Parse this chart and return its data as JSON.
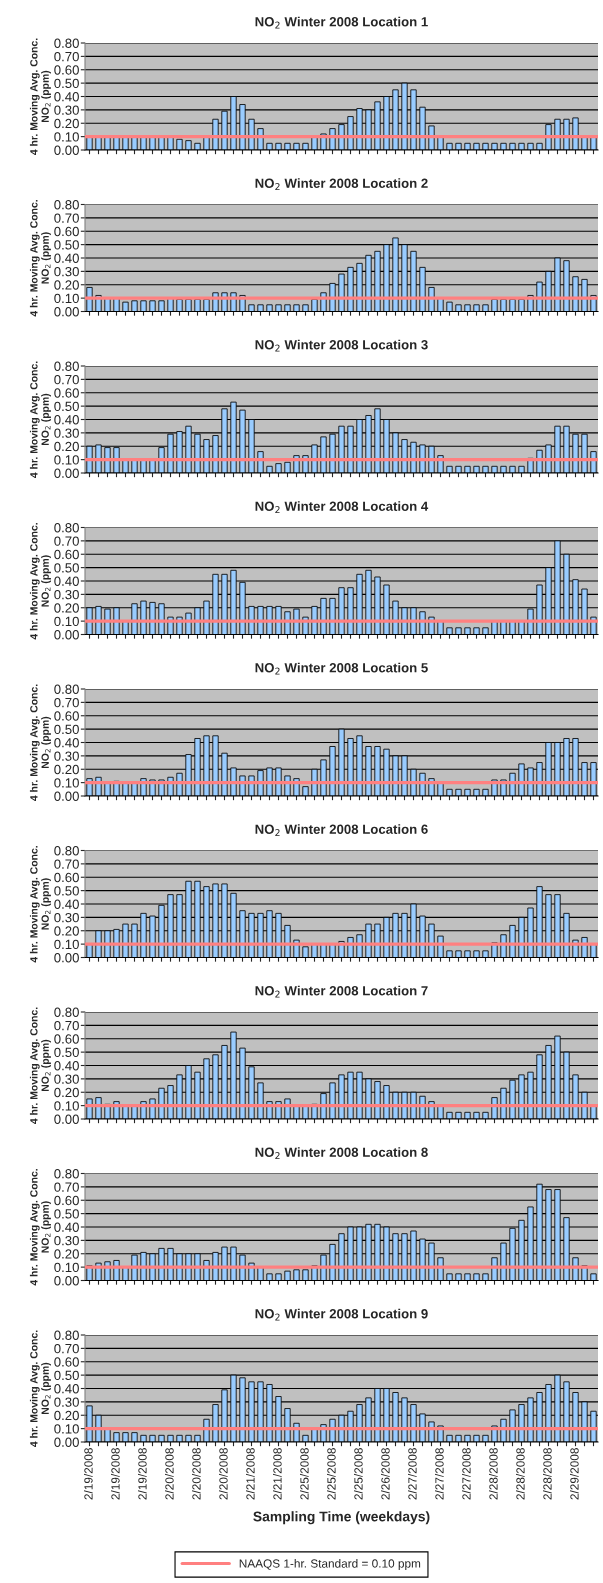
{
  "chart_data": [
    {
      "type": "bar",
      "title": "NO$_{2}$ Winter 2008 Location 1",
      "ylabel": "4 hr. Moving Avg. Conc.\nNO$_{2}$ (ppm)",
      "tick_labels": "y",
      "grid": "y",
      "color": "#99ccff",
      "ylim": [
        0,
        0.8
      ],
      "yticks": [
        {
          "value": 0,
          "label": "0.00"
        },
        {
          "value": 0.1,
          "label": "0.10"
        },
        {
          "value": 0.2,
          "label": "0.20"
        },
        {
          "value": 0.3,
          "label": "0.30"
        },
        {
          "value": 0.4,
          "label": "0.40"
        },
        {
          "value": 0.5,
          "label": "0.50"
        },
        {
          "value": 0.6,
          "label": "0.60"
        },
        {
          "value": 0.7,
          "label": "0.70"
        },
        {
          "value": 0.8,
          "label": "0.80"
        }
      ],
      "categories": [
        null,
        null,
        null,
        null,
        null,
        null,
        null,
        null,
        null,
        null,
        null,
        null,
        null,
        null,
        null,
        null,
        null,
        null,
        null,
        null,
        null,
        null,
        null,
        null,
        null,
        null,
        null,
        null,
        null,
        null,
        null,
        null,
        null,
        null,
        null,
        null,
        null,
        null,
        null,
        null,
        null,
        null,
        null,
        null,
        null,
        null,
        null,
        null,
        null,
        null,
        null,
        null,
        null,
        null,
        null,
        null,
        null
      ],
      "values": [
        0.1,
        0.1,
        0.1,
        0.1,
        0.1,
        0.1,
        0.1,
        0.1,
        0.1,
        0.1,
        0.08,
        0.07,
        0.05,
        0.1,
        0.23,
        0.29,
        0.4,
        0.34,
        0.23,
        0.16,
        0.05,
        0.05,
        0.05,
        0.05,
        0.05,
        0.1,
        0.12,
        0.16,
        0.19,
        0.25,
        0.31,
        0.3,
        0.36,
        0.4,
        0.45,
        0.5,
        0.45,
        0.32,
        0.18,
        0.1,
        0.05,
        0.05,
        0.05,
        0.05,
        0.05,
        0.05,
        0.05,
        0.05,
        0.05,
        0.05,
        0.05,
        0.19,
        0.23,
        0.23,
        0.24,
        0.1,
        0.1
      ],
      "ref_lines": [
        {
          "axis": "y",
          "value": 0.1,
          "color": "#ff8080"
        }
      ]
    },
    {
      "type": "bar",
      "title": "NO$_{2}$ Winter 2008 Location 2",
      "ylabel": "4 hr. Moving Avg. Conc.\nNO$_{2}$ (ppm)",
      "tick_labels": "y",
      "grid": "y",
      "color": "#99ccff",
      "ylim": [
        0,
        0.8
      ],
      "yticks": [
        {
          "value": 0,
          "label": "0.00"
        },
        {
          "value": 0.1,
          "label": "0.10"
        },
        {
          "value": 0.2,
          "label": "0.20"
        },
        {
          "value": 0.3,
          "label": "0.30"
        },
        {
          "value": 0.4,
          "label": "0.40"
        },
        {
          "value": 0.5,
          "label": "0.50"
        },
        {
          "value": 0.6,
          "label": "0.60"
        },
        {
          "value": 0.7,
          "label": "0.70"
        },
        {
          "value": 0.8,
          "label": "0.80"
        }
      ],
      "categories": [
        null,
        null,
        null,
        null,
        null,
        null,
        null,
        null,
        null,
        null,
        null,
        null,
        null,
        null,
        null,
        null,
        null,
        null,
        null,
        null,
        null,
        null,
        null,
        null,
        null,
        null,
        null,
        null,
        null,
        null,
        null,
        null,
        null,
        null,
        null,
        null,
        null,
        null,
        null,
        null,
        null,
        null,
        null,
        null,
        null,
        null,
        null,
        null,
        null,
        null,
        null,
        null,
        null,
        null,
        null,
        null,
        null
      ],
      "values": [
        0.18,
        0.12,
        0.1,
        0.1,
        0.07,
        0.08,
        0.08,
        0.08,
        0.08,
        0.1,
        0.09,
        0.09,
        0.09,
        0.09,
        0.14,
        0.14,
        0.14,
        0.12,
        0.05,
        0.05,
        0.05,
        0.05,
        0.05,
        0.05,
        0.05,
        0.09,
        0.14,
        0.21,
        0.28,
        0.33,
        0.36,
        0.42,
        0.45,
        0.5,
        0.55,
        0.5,
        0.45,
        0.33,
        0.18,
        0.1,
        0.07,
        0.05,
        0.05,
        0.05,
        0.05,
        0.09,
        0.09,
        0.09,
        0.09,
        0.12,
        0.22,
        0.3,
        0.4,
        0.38,
        0.26,
        0.24,
        0.12
      ],
      "ref_lines": [
        {
          "axis": "y",
          "value": 0.1,
          "color": "#ff8080"
        }
      ]
    },
    {
      "type": "bar",
      "title": "NO$_{2}$ Winter 2008 Location 3",
      "ylabel": "4 hr. Moving Avg. Conc.\nNO$_{2}$ (ppm)",
      "tick_labels": "y",
      "grid": "y",
      "color": "#99ccff",
      "ylim": [
        0,
        0.8
      ],
      "yticks": [
        {
          "value": 0,
          "label": "0.00"
        },
        {
          "value": 0.1,
          "label": "0.10"
        },
        {
          "value": 0.2,
          "label": "0.20"
        },
        {
          "value": 0.3,
          "label": "0.30"
        },
        {
          "value": 0.4,
          "label": "0.40"
        },
        {
          "value": 0.5,
          "label": "0.50"
        },
        {
          "value": 0.6,
          "label": "0.60"
        },
        {
          "value": 0.7,
          "label": "0.70"
        },
        {
          "value": 0.8,
          "label": "0.80"
        }
      ],
      "categories": [
        null,
        null,
        null,
        null,
        null,
        null,
        null,
        null,
        null,
        null,
        null,
        null,
        null,
        null,
        null,
        null,
        null,
        null,
        null,
        null,
        null,
        null,
        null,
        null,
        null,
        null,
        null,
        null,
        null,
        null,
        null,
        null,
        null,
        null,
        null,
        null,
        null,
        null,
        null,
        null,
        null,
        null,
        null,
        null,
        null,
        null,
        null,
        null,
        null,
        null,
        null,
        null,
        null,
        null,
        null,
        null,
        null
      ],
      "values": [
        0.2,
        0.21,
        0.19,
        0.19,
        0.1,
        0.1,
        0.1,
        0.1,
        0.19,
        0.29,
        0.31,
        0.35,
        0.29,
        0.25,
        0.28,
        0.48,
        0.53,
        0.47,
        0.4,
        0.16,
        0.05,
        0.07,
        0.08,
        0.13,
        0.13,
        0.21,
        0.27,
        0.29,
        0.35,
        0.35,
        0.4,
        0.43,
        0.48,
        0.4,
        0.3,
        0.25,
        0.23,
        0.21,
        0.2,
        0.13,
        0.05,
        0.05,
        0.05,
        0.05,
        0.05,
        0.05,
        0.05,
        0.05,
        0.05,
        0.11,
        0.17,
        0.21,
        0.35,
        0.35,
        0.29,
        0.29,
        0.16
      ],
      "ref_lines": [
        {
          "axis": "y",
          "value": 0.1,
          "color": "#ff8080"
        }
      ]
    },
    {
      "type": "bar",
      "title": "NO$_{2}$ Winter 2008 Location 4",
      "ylabel": "4 hr. Moving Avg. Conc.\nNO$_{2}$ (ppm)",
      "tick_labels": "y",
      "grid": "y",
      "color": "#99ccff",
      "ylim": [
        0,
        0.8
      ],
      "yticks": [
        {
          "value": 0,
          "label": "0.00"
        },
        {
          "value": 0.1,
          "label": "0.10"
        },
        {
          "value": 0.2,
          "label": "0.20"
        },
        {
          "value": 0.3,
          "label": "0.30"
        },
        {
          "value": 0.4,
          "label": "0.40"
        },
        {
          "value": 0.5,
          "label": "0.50"
        },
        {
          "value": 0.6,
          "label": "0.60"
        },
        {
          "value": 0.7,
          "label": "0.70"
        },
        {
          "value": 0.8,
          "label": "0.80"
        }
      ],
      "categories": [
        null,
        null,
        null,
        null,
        null,
        null,
        null,
        null,
        null,
        null,
        null,
        null,
        null,
        null,
        null,
        null,
        null,
        null,
        null,
        null,
        null,
        null,
        null,
        null,
        null,
        null,
        null,
        null,
        null,
        null,
        null,
        null,
        null,
        null,
        null,
        null,
        null,
        null,
        null,
        null,
        null,
        null,
        null,
        null,
        null,
        null,
        null,
        null,
        null,
        null,
        null,
        null,
        null,
        null,
        null,
        null,
        null
      ],
      "values": [
        0.2,
        0.21,
        0.19,
        0.2,
        0.1,
        0.23,
        0.25,
        0.24,
        0.23,
        0.13,
        0.13,
        0.16,
        0.2,
        0.25,
        0.45,
        0.45,
        0.48,
        0.39,
        0.21,
        0.21,
        0.21,
        0.21,
        0.17,
        0.19,
        0.13,
        0.21,
        0.27,
        0.27,
        0.35,
        0.35,
        0.45,
        0.48,
        0.43,
        0.37,
        0.25,
        0.2,
        0.2,
        0.17,
        0.13,
        0.1,
        0.05,
        0.05,
        0.05,
        0.05,
        0.05,
        0.1,
        0.1,
        0.1,
        0.1,
        0.19,
        0.37,
        0.5,
        0.7,
        0.6,
        0.41,
        0.34,
        0.13
      ],
      "ref_lines": [
        {
          "axis": "y",
          "value": 0.1,
          "color": "#ff8080"
        }
      ]
    },
    {
      "type": "bar",
      "title": "NO$_{2}$ Winter 2008 Location 5",
      "ylabel": "4 hr. Moving Avg. Conc.\nNO$_{2}$ (ppm)",
      "tick_labels": "y",
      "grid": "y",
      "color": "#99ccff",
      "ylim": [
        0,
        0.8
      ],
      "yticks": [
        {
          "value": 0,
          "label": "0.00"
        },
        {
          "value": 0.1,
          "label": "0.10"
        },
        {
          "value": 0.2,
          "label": "0.20"
        },
        {
          "value": 0.3,
          "label": "0.30"
        },
        {
          "value": 0.4,
          "label": "0.40"
        },
        {
          "value": 0.5,
          "label": "0.50"
        },
        {
          "value": 0.6,
          "label": "0.60"
        },
        {
          "value": 0.7,
          "label": "0.70"
        },
        {
          "value": 0.8,
          "label": "0.80"
        }
      ],
      "categories": [
        null,
        null,
        null,
        null,
        null,
        null,
        null,
        null,
        null,
        null,
        null,
        null,
        null,
        null,
        null,
        null,
        null,
        null,
        null,
        null,
        null,
        null,
        null,
        null,
        null,
        null,
        null,
        null,
        null,
        null,
        null,
        null,
        null,
        null,
        null,
        null,
        null,
        null,
        null,
        null,
        null,
        null,
        null,
        null,
        null,
        null,
        null,
        null,
        null,
        null,
        null,
        null,
        null,
        null,
        null,
        null,
        null
      ],
      "values": [
        0.13,
        0.14,
        0.1,
        0.11,
        0.1,
        0.1,
        0.13,
        0.12,
        0.12,
        0.14,
        0.17,
        0.31,
        0.43,
        0.45,
        0.45,
        0.32,
        0.21,
        0.15,
        0.15,
        0.19,
        0.21,
        0.21,
        0.15,
        0.13,
        0.07,
        0.2,
        0.27,
        0.37,
        0.5,
        0.43,
        0.45,
        0.37,
        0.37,
        0.35,
        0.3,
        0.3,
        0.2,
        0.17,
        0.13,
        0.1,
        0.05,
        0.05,
        0.05,
        0.05,
        0.05,
        0.12,
        0.12,
        0.17,
        0.24,
        0.21,
        0.25,
        0.4,
        0.4,
        0.43,
        0.43,
        0.25,
        0.25
      ],
      "ref_lines": [
        {
          "axis": "y",
          "value": 0.1,
          "color": "#ff8080"
        }
      ]
    },
    {
      "type": "bar",
      "title": "NO$_{2}$ Winter 2008 Location 6",
      "ylabel": "4 hr. Moving Avg. Conc.\nNO$_{2}$ (ppm)",
      "tick_labels": "y",
      "grid": "y",
      "color": "#99ccff",
      "ylim": [
        0,
        0.8
      ],
      "yticks": [
        {
          "value": 0,
          "label": "0.00"
        },
        {
          "value": 0.1,
          "label": "0.10"
        },
        {
          "value": 0.2,
          "label": "0.20"
        },
        {
          "value": 0.3,
          "label": "0.30"
        },
        {
          "value": 0.4,
          "label": "0.40"
        },
        {
          "value": 0.5,
          "label": "0.50"
        },
        {
          "value": 0.6,
          "label": "0.60"
        },
        {
          "value": 0.7,
          "label": "0.70"
        },
        {
          "value": 0.8,
          "label": "0.80"
        }
      ],
      "categories": [
        null,
        null,
        null,
        null,
        null,
        null,
        null,
        null,
        null,
        null,
        null,
        null,
        null,
        null,
        null,
        null,
        null,
        null,
        null,
        null,
        null,
        null,
        null,
        null,
        null,
        null,
        null,
        null,
        null,
        null,
        null,
        null,
        null,
        null,
        null,
        null,
        null,
        null,
        null,
        null,
        null,
        null,
        null,
        null,
        null,
        null,
        null,
        null,
        null,
        null,
        null,
        null,
        null,
        null,
        null,
        null,
        null
      ],
      "values": [
        0.1,
        0.2,
        0.2,
        0.21,
        0.25,
        0.25,
        0.33,
        0.31,
        0.39,
        0.47,
        0.47,
        0.57,
        0.57,
        0.53,
        0.55,
        0.55,
        0.48,
        0.35,
        0.33,
        0.33,
        0.35,
        0.33,
        0.24,
        0.13,
        0.08,
        0.1,
        0.1,
        0.1,
        0.12,
        0.15,
        0.17,
        0.25,
        0.25,
        0.3,
        0.33,
        0.33,
        0.4,
        0.31,
        0.25,
        0.16,
        0.05,
        0.05,
        0.05,
        0.05,
        0.05,
        0.11,
        0.17,
        0.24,
        0.3,
        0.37,
        0.53,
        0.47,
        0.47,
        0.33,
        0.13,
        0.15,
        0.1
      ],
      "ref_lines": [
        {
          "axis": "y",
          "value": 0.1,
          "color": "#ff8080"
        }
      ]
    },
    {
      "type": "bar",
      "title": "NO$_{2}$ Winter 2008 Location 7",
      "ylabel": "4 hr. Moving Avg. Conc.\nNO$_{2}$ (ppm)",
      "tick_labels": "y",
      "grid": "y",
      "color": "#99ccff",
      "ylim": [
        0,
        0.8
      ],
      "yticks": [
        {
          "value": 0,
          "label": "0.00"
        },
        {
          "value": 0.1,
          "label": "0.10"
        },
        {
          "value": 0.2,
          "label": "0.20"
        },
        {
          "value": 0.3,
          "label": "0.30"
        },
        {
          "value": 0.4,
          "label": "0.40"
        },
        {
          "value": 0.5,
          "label": "0.50"
        },
        {
          "value": 0.6,
          "label": "0.60"
        },
        {
          "value": 0.7,
          "label": "0.70"
        },
        {
          "value": 0.8,
          "label": "0.80"
        }
      ],
      "categories": [
        null,
        null,
        null,
        null,
        null,
        null,
        null,
        null,
        null,
        null,
        null,
        null,
        null,
        null,
        null,
        null,
        null,
        null,
        null,
        null,
        null,
        null,
        null,
        null,
        null,
        null,
        null,
        null,
        null,
        null,
        null,
        null,
        null,
        null,
        null,
        null,
        null,
        null,
        null,
        null,
        null,
        null,
        null,
        null,
        null,
        null,
        null,
        null,
        null,
        null,
        null,
        null,
        null,
        null,
        null,
        null,
        null
      ],
      "values": [
        0.15,
        0.16,
        0.11,
        0.13,
        0.1,
        0.1,
        0.13,
        0.15,
        0.23,
        0.25,
        0.33,
        0.4,
        0.35,
        0.45,
        0.48,
        0.55,
        0.65,
        0.53,
        0.39,
        0.27,
        0.13,
        0.13,
        0.15,
        0.1,
        0.1,
        0.11,
        0.19,
        0.27,
        0.33,
        0.35,
        0.35,
        0.3,
        0.28,
        0.25,
        0.2,
        0.2,
        0.2,
        0.17,
        0.13,
        0.1,
        0.05,
        0.05,
        0.05,
        0.05,
        0.05,
        0.16,
        0.23,
        0.29,
        0.33,
        0.35,
        0.48,
        0.55,
        0.62,
        0.5,
        0.33,
        0.2,
        0.1
      ],
      "ref_lines": [
        {
          "axis": "y",
          "value": 0.1,
          "color": "#ff8080"
        }
      ]
    },
    {
      "type": "bar",
      "title": "NO$_{2}$ Winter 2008 Location 8",
      "ylabel": "4 hr. Moving Avg. Conc.\nNO$_{2}$ (ppm)",
      "tick_labels": "y",
      "grid": "y",
      "color": "#99ccff",
      "ylim": [
        0,
        0.8
      ],
      "yticks": [
        {
          "value": 0,
          "label": "0.00"
        },
        {
          "value": 0.1,
          "label": "0.10"
        },
        {
          "value": 0.2,
          "label": "0.20"
        },
        {
          "value": 0.3,
          "label": "0.30"
        },
        {
          "value": 0.4,
          "label": "0.40"
        },
        {
          "value": 0.5,
          "label": "0.50"
        },
        {
          "value": 0.6,
          "label": "0.60"
        },
        {
          "value": 0.7,
          "label": "0.70"
        },
        {
          "value": 0.8,
          "label": "0.80"
        }
      ],
      "categories": [
        null,
        null,
        null,
        null,
        null,
        null,
        null,
        null,
        null,
        null,
        null,
        null,
        null,
        null,
        null,
        null,
        null,
        null,
        null,
        null,
        null,
        null,
        null,
        null,
        null,
        null,
        null,
        null,
        null,
        null,
        null,
        null,
        null,
        null,
        null,
        null,
        null,
        null,
        null,
        null,
        null,
        null,
        null,
        null,
        null,
        null,
        null,
        null,
        null,
        null,
        null,
        null,
        null,
        null,
        null,
        null,
        null
      ],
      "values": [
        0.11,
        0.13,
        0.14,
        0.15,
        0.1,
        0.19,
        0.21,
        0.2,
        0.24,
        0.24,
        0.2,
        0.2,
        0.2,
        0.15,
        0.21,
        0.25,
        0.25,
        0.19,
        0.13,
        0.1,
        0.05,
        0.05,
        0.07,
        0.08,
        0.08,
        0.11,
        0.19,
        0.27,
        0.35,
        0.4,
        0.4,
        0.42,
        0.42,
        0.4,
        0.35,
        0.35,
        0.37,
        0.31,
        0.28,
        0.17,
        0.05,
        0.05,
        0.05,
        0.05,
        0.05,
        0.17,
        0.28,
        0.39,
        0.45,
        0.55,
        0.72,
        0.68,
        0.68,
        0.47,
        0.17,
        0.11,
        0.05
      ],
      "ref_lines": [
        {
          "axis": "y",
          "value": 0.1,
          "color": "#ff8080"
        }
      ]
    },
    {
      "type": "bar",
      "title": "NO$_{2}$ Winter 2008 Location 9",
      "ylabel": "4 hr. Moving Avg. Conc.\nNO$_{2}$ (ppm)",
      "xlabel": "Sampling Time (weekdays)",
      "legend": "bottom",
      "grid": "y",
      "color": "#99ccff",
      "ylim": [
        0,
        0.8
      ],
      "yticks": [
        {
          "value": 0,
          "label": "0.00"
        },
        {
          "value": 0.1,
          "label": "0.10"
        },
        {
          "value": 0.2,
          "label": "0.20"
        },
        {
          "value": 0.3,
          "label": "0.30"
        },
        {
          "value": 0.4,
          "label": "0.40"
        },
        {
          "value": 0.5,
          "label": "0.50"
        },
        {
          "value": 0.6,
          "label": "0.60"
        },
        {
          "value": 0.7,
          "label": "0.70"
        },
        {
          "value": 0.8,
          "label": "0.80"
        }
      ],
      "categories": [
        "2/19/2008",
        null,
        null,
        "2/19/2008",
        null,
        null,
        "2/19/2008",
        null,
        null,
        "2/20/2008",
        null,
        null,
        "2/20/2008",
        null,
        null,
        "2/20/2008",
        null,
        null,
        "2/21/2008",
        null,
        null,
        "2/21/2008",
        null,
        null,
        "2/25/2008",
        null,
        null,
        "2/25/2008",
        null,
        null,
        "2/25/2008",
        null,
        null,
        "2/26/2008",
        null,
        null,
        "2/27/2008",
        null,
        null,
        "2/27/2008",
        null,
        null,
        "2/27/2008",
        null,
        null,
        "2/28/2008",
        null,
        null,
        "2/28/2008",
        null,
        null,
        "2/28/2008",
        null,
        null,
        "2/29/2008",
        null,
        null
      ],
      "values": [
        0.27,
        0.2,
        0.1,
        0.07,
        0.07,
        0.07,
        0.05,
        0.05,
        0.05,
        0.05,
        0.05,
        0.05,
        0.05,
        0.17,
        0.28,
        0.39,
        0.5,
        0.48,
        0.45,
        0.45,
        0.43,
        0.34,
        0.25,
        0.14,
        0.05,
        0.1,
        0.13,
        0.17,
        0.2,
        0.23,
        0.28,
        0.33,
        0.4,
        0.4,
        0.37,
        0.33,
        0.28,
        0.21,
        0.15,
        0.12,
        0.05,
        0.05,
        0.05,
        0.05,
        0.05,
        0.12,
        0.17,
        0.24,
        0.28,
        0.33,
        0.37,
        0.43,
        0.5,
        0.45,
        0.37,
        0.3,
        0.23
      ],
      "ref_lines": [
        {
          "axis": "y",
          "value": 0.1,
          "color": "#ff8080",
          "label": "NAAQS 1-hr. Standard = 0.10 ppm"
        }
      ]
    }
  ]
}
